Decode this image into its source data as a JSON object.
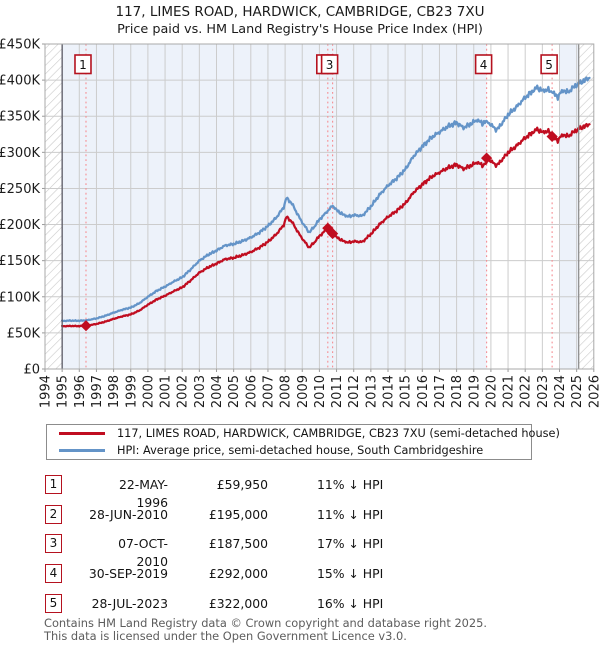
{
  "chart_data": {
    "type": "line",
    "title": "117, LIMES ROAD, HARDWICK, CAMBRIDGE, CB23 7XU",
    "subtitle": "Price paid vs. HM Land Registry's House Price Index (HPI)",
    "x_axis": {
      "min": 1994,
      "max": 2026,
      "tick_labels": [
        "1994",
        "1995",
        "1996",
        "1997",
        "1998",
        "1999",
        "2000",
        "2001",
        "2002",
        "2003",
        "2004",
        "2005",
        "2006",
        "2007",
        "2008",
        "2009",
        "2010",
        "2011",
        "2012",
        "2013",
        "2014",
        "2015",
        "2016",
        "2017",
        "2018",
        "2019",
        "2020",
        "2021",
        "2022",
        "2023",
        "2024",
        "2025",
        "2026"
      ]
    },
    "y_axis": {
      "min": 0,
      "max": 450000,
      "tick_step": 50000,
      "grid": true,
      "tick_labels": [
        "£0",
        "£50K",
        "£100K",
        "£150K",
        "£200K",
        "£250K",
        "£300K",
        "£350K",
        "£400K",
        "£450K"
      ]
    },
    "bands": {
      "tint_year_ranges": [
        [
          1995.0,
          2019.75
        ],
        [
          2024.0,
          2025.12
        ]
      ],
      "hatch_year_ranges": [
        [
          1994.0,
          1995.0
        ],
        [
          2025.12,
          2026.0
        ]
      ],
      "edge_lines_years": [
        1995.0,
        2025.12
      ]
    },
    "series": [
      {
        "name": "117, LIMES ROAD, HARDWICK, CAMBRIDGE, CB23 7XU (semi-detached house)",
        "key": "property",
        "color": "#c00d20",
        "points": [
          [
            1995.0,
            59200
          ],
          [
            1995.5,
            59600
          ],
          [
            1996.0,
            59400
          ],
          [
            1996.39,
            59950
          ],
          [
            1997.0,
            62300
          ],
          [
            1997.5,
            65400
          ],
          [
            1998.0,
            69400
          ],
          [
            1998.5,
            72900
          ],
          [
            1999.0,
            75600
          ],
          [
            1999.5,
            80900
          ],
          [
            2000.0,
            89000
          ],
          [
            2000.5,
            96100
          ],
          [
            2001.0,
            101400
          ],
          [
            2001.5,
            107600
          ],
          [
            2002.0,
            113000
          ],
          [
            2002.5,
            122800
          ],
          [
            2003.0,
            133400
          ],
          [
            2003.5,
            140600
          ],
          [
            2004.0,
            145900
          ],
          [
            2004.5,
            152100
          ],
          [
            2005.0,
            153900
          ],
          [
            2005.5,
            157500
          ],
          [
            2006.0,
            161900
          ],
          [
            2006.5,
            168100
          ],
          [
            2007.0,
            176100
          ],
          [
            2007.5,
            186800
          ],
          [
            2007.92,
            199300
          ],
          [
            2008.08,
            210800
          ],
          [
            2008.4,
            203700
          ],
          [
            2008.75,
            189500
          ],
          [
            2009.0,
            180600
          ],
          [
            2009.4,
            168100
          ],
          [
            2009.7,
            175200
          ],
          [
            2010.0,
            184100
          ],
          [
            2010.3,
            190400
          ],
          [
            2010.49,
            195000
          ],
          [
            2010.77,
            187500
          ],
          [
            2011.0,
            182500
          ],
          [
            2011.35,
            177500
          ],
          [
            2011.7,
            175000
          ],
          [
            2012.0,
            176700
          ],
          [
            2012.5,
            175900
          ],
          [
            2013.0,
            186700
          ],
          [
            2013.5,
            200000
          ],
          [
            2014.0,
            210700
          ],
          [
            2014.5,
            219000
          ],
          [
            2015.0,
            229000
          ],
          [
            2015.5,
            244700
          ],
          [
            2016.0,
            255500
          ],
          [
            2016.5,
            265500
          ],
          [
            2017.0,
            272100
          ],
          [
            2017.5,
            278700
          ],
          [
            2018.0,
            282900
          ],
          [
            2018.4,
            277100
          ],
          [
            2018.8,
            281200
          ],
          [
            2019.2,
            286200
          ],
          [
            2019.5,
            282100
          ],
          [
            2019.74,
            285000
          ],
          [
            2019.75,
            292000
          ],
          [
            2020.0,
            287700
          ],
          [
            2020.35,
            281800
          ],
          [
            2020.7,
            291200
          ],
          [
            2021.0,
            299700
          ],
          [
            2021.5,
            309000
          ],
          [
            2022.0,
            320100
          ],
          [
            2022.4,
            326900
          ],
          [
            2022.7,
            332000
          ],
          [
            2023.0,
            327700
          ],
          [
            2023.3,
            329400
          ],
          [
            2023.56,
            326000
          ],
          [
            2023.57,
            322000
          ],
          [
            2023.9,
            316900
          ],
          [
            2024.2,
            324500
          ],
          [
            2024.5,
            322000
          ],
          [
            2024.8,
            327900
          ],
          [
            2025.1,
            332100
          ],
          [
            2025.4,
            335400
          ],
          [
            2025.75,
            338800
          ]
        ]
      },
      {
        "name": "HPI: Average price, semi-detached house, South Cambridgeshire",
        "key": "hpi",
        "color": "#6494c8",
        "points": [
          [
            1995.0,
            66500
          ],
          [
            1995.5,
            67000
          ],
          [
            1996.0,
            66800
          ],
          [
            1996.39,
            67400
          ],
          [
            1997.0,
            70000
          ],
          [
            1997.5,
            73500
          ],
          [
            1998.0,
            78000
          ],
          [
            1998.5,
            82000
          ],
          [
            1999.0,
            85000
          ],
          [
            1999.5,
            91000
          ],
          [
            2000.0,
            100000
          ],
          [
            2000.5,
            108000
          ],
          [
            2001.0,
            114000
          ],
          [
            2001.5,
            121000
          ],
          [
            2002.0,
            127000
          ],
          [
            2002.5,
            138000
          ],
          [
            2003.0,
            150000
          ],
          [
            2003.5,
            158000
          ],
          [
            2004.0,
            164000
          ],
          [
            2004.5,
            171000
          ],
          [
            2005.0,
            173000
          ],
          [
            2005.5,
            177000
          ],
          [
            2006.0,
            182000
          ],
          [
            2006.5,
            189000
          ],
          [
            2007.0,
            198000
          ],
          [
            2007.5,
            210000
          ],
          [
            2007.92,
            224000
          ],
          [
            2008.08,
            237000
          ],
          [
            2008.4,
            229000
          ],
          [
            2008.75,
            213000
          ],
          [
            2009.0,
            203000
          ],
          [
            2009.4,
            189000
          ],
          [
            2009.7,
            197000
          ],
          [
            2010.0,
            207000
          ],
          [
            2010.3,
            214000
          ],
          [
            2010.49,
            219000
          ],
          [
            2010.77,
            226000
          ],
          [
            2011.0,
            220000
          ],
          [
            2011.35,
            214000
          ],
          [
            2011.7,
            211000
          ],
          [
            2012.0,
            213000
          ],
          [
            2012.5,
            212000
          ],
          [
            2013.0,
            225000
          ],
          [
            2013.5,
            241000
          ],
          [
            2014.0,
            254000
          ],
          [
            2014.5,
            264000
          ],
          [
            2015.0,
            276000
          ],
          [
            2015.5,
            295000
          ],
          [
            2016.0,
            308000
          ],
          [
            2016.5,
            320000
          ],
          [
            2017.0,
            328000
          ],
          [
            2017.5,
            336000
          ],
          [
            2018.0,
            341000
          ],
          [
            2018.4,
            334000
          ],
          [
            2018.8,
            339000
          ],
          [
            2019.2,
            345000
          ],
          [
            2019.5,
            340000
          ],
          [
            2019.75,
            343500
          ],
          [
            2020.0,
            338000
          ],
          [
            2020.35,
            331000
          ],
          [
            2020.7,
            342000
          ],
          [
            2021.0,
            352000
          ],
          [
            2021.5,
            363000
          ],
          [
            2022.0,
            376000
          ],
          [
            2022.4,
            384000
          ],
          [
            2022.7,
            390000
          ],
          [
            2023.0,
            385000
          ],
          [
            2023.3,
            387000
          ],
          [
            2023.57,
            383000
          ],
          [
            2023.9,
            377000
          ],
          [
            2024.2,
            386000
          ],
          [
            2024.5,
            383000
          ],
          [
            2024.8,
            390000
          ],
          [
            2025.1,
            395000
          ],
          [
            2025.4,
            399000
          ],
          [
            2025.75,
            403000
          ]
        ]
      }
    ],
    "sales": [
      {
        "label": "1",
        "year": 1996.39,
        "price": 59950
      },
      {
        "label": "2",
        "year": 2010.49,
        "price": 195000
      },
      {
        "label": "3",
        "year": 2010.77,
        "price": 187500
      },
      {
        "label": "4",
        "year": 2019.75,
        "price": 292000
      },
      {
        "label": "5",
        "year": 2023.57,
        "price": 322000
      }
    ],
    "colors": {
      "property": "#c00d20",
      "hpi": "#6494c8",
      "sale_line": "#f58e93",
      "tint": "#edf2fa",
      "grid": "#cccccc",
      "frame": "#a9a9a9",
      "hatch_line": "#c9c9c9",
      "edge_left": "#5a5a66",
      "edge_right": "#888888",
      "badge_border": "#b5121f",
      "axis_text": "#1c1c1c"
    },
    "legend_position": "below"
  },
  "legend": {
    "items": [
      {
        "label": "117, LIMES ROAD, HARDWICK, CAMBRIDGE, CB23 7XU (semi-detached house)"
      },
      {
        "label": "HPI: Average price, semi-detached house, South Cambridgeshire"
      }
    ]
  },
  "table": {
    "rows": [
      {
        "num": "1",
        "date": "22-MAY-1996",
        "price": "£59,950",
        "hpi_diff": "11% ↓ HPI"
      },
      {
        "num": "2",
        "date": "28-JUN-2010",
        "price": "£195,000",
        "hpi_diff": "11% ↓ HPI"
      },
      {
        "num": "3",
        "date": "07-OCT-2010",
        "price": "£187,500",
        "hpi_diff": "17% ↓ HPI"
      },
      {
        "num": "4",
        "date": "30-SEP-2019",
        "price": "£292,000",
        "hpi_diff": "15% ↓ HPI"
      },
      {
        "num": "5",
        "date": "28-JUL-2023",
        "price": "£322,000",
        "hpi_diff": "16% ↓ HPI"
      }
    ]
  },
  "footer": {
    "line1": "Contains HM Land Registry data © Crown copyright and database right 2025.",
    "line2": "This data is licensed under the Open Government Licence v3.0."
  }
}
